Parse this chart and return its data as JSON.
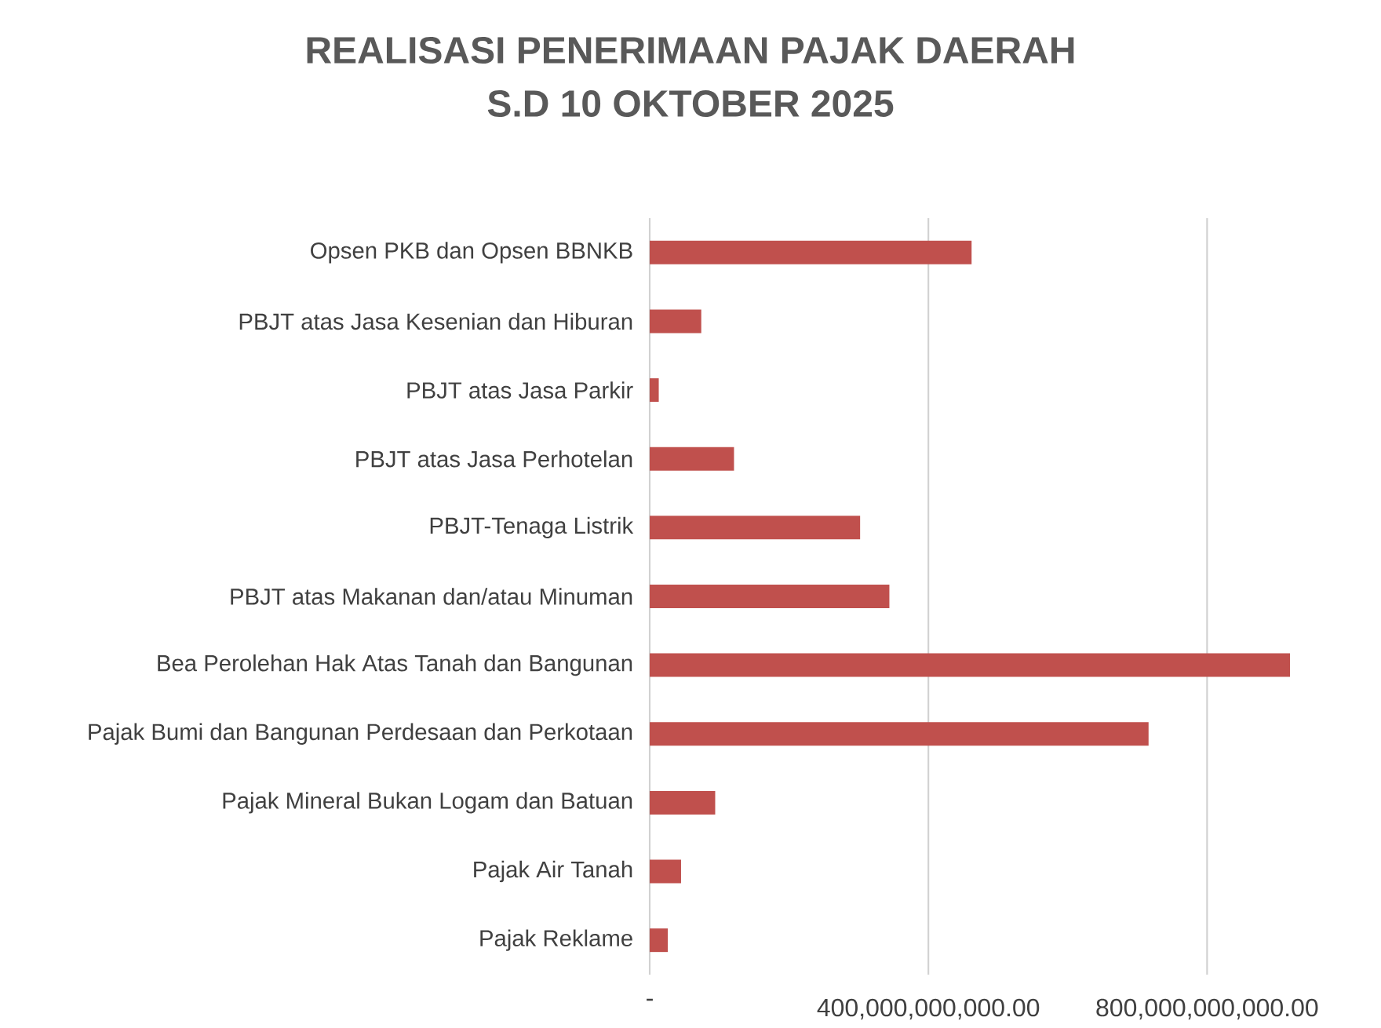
{
  "chart_data": {
    "type": "bar",
    "orientation": "horizontal",
    "title": "REALISASI PENERIMAAN PAJAK DAERAH",
    "subtitle": "S.D 10 OKTOBER 2025",
    "categories": [
      "Opsen PKB dan Opsen BBNKB",
      "PBJT atas Jasa Kesenian dan Hiburan",
      "PBJT atas Jasa Parkir",
      "PBJT atas Jasa Perhotelan",
      "PBJT-Tenaga Listrik",
      "PBJT atas Makanan dan/atau Minuman",
      "Bea Perolehan Hak Atas Tanah dan Bangunan",
      "Pajak Bumi dan Bangunan Perdesaan dan Perkotaan",
      "Pajak Mineral Bukan Logam dan Batuan",
      "Pajak Air Tanah",
      "Pajak Reklame"
    ],
    "values": [
      462000000000,
      74000000000,
      13000000000,
      121000000000,
      302000000000,
      344000000000,
      919000000000,
      716000000000,
      94000000000,
      45000000000,
      26000000000
    ],
    "color": "#c0504d",
    "xlim": [
      0,
      919000000000
    ],
    "xticks": [
      {
        "value": 0,
        "label": "-"
      },
      {
        "value": 400000000000,
        "label": "400,000,000,000.00"
      },
      {
        "value": 800000000000,
        "label": "800,000,000,000.00"
      }
    ],
    "grid": "x"
  }
}
